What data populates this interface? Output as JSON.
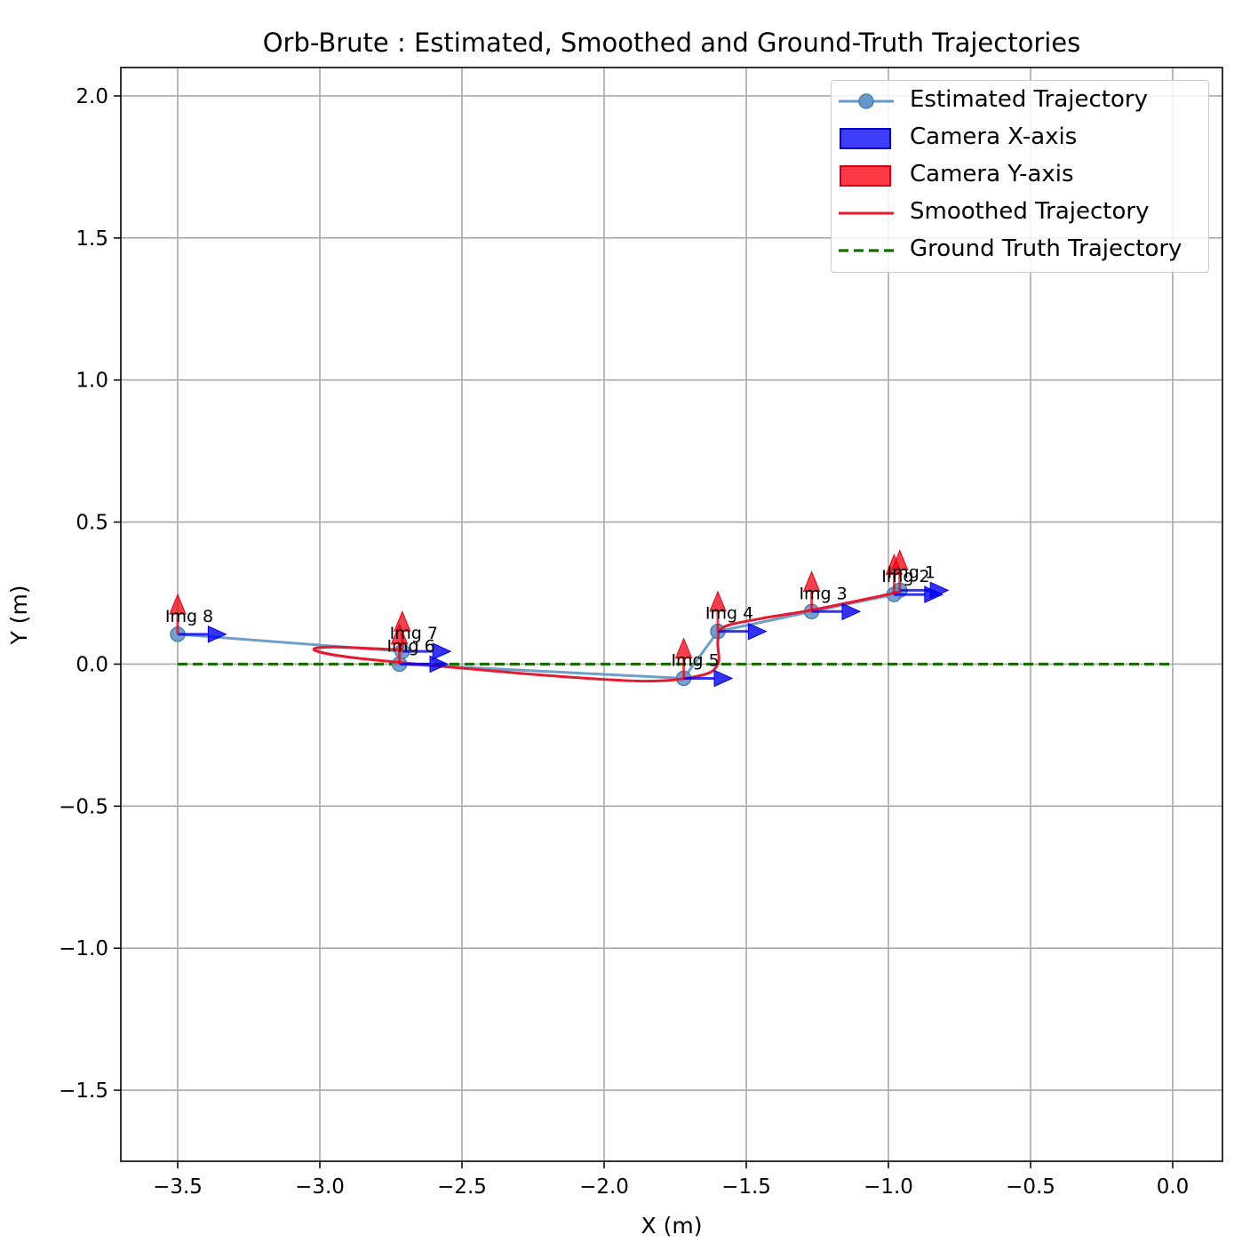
{
  "chart_data": {
    "type": "line",
    "title": "Orb-Brute : Estimated, Smoothed and Ground-Truth Trajectories",
    "xlabel": "X (m)",
    "ylabel": "Y (m)",
    "xlim": [
      -3.7,
      0.175
    ],
    "ylim": [
      -1.75,
      2.1
    ],
    "xticks": [
      -3.5,
      -3.0,
      -2.5,
      -2.0,
      -1.5,
      -1.0,
      -0.5,
      0.0
    ],
    "xtick_labels": [
      "−3.5",
      "−3.0",
      "−2.5",
      "−2.0",
      "−1.5",
      "−1.0",
      "−0.5",
      "0.0"
    ],
    "yticks": [
      2.0,
      1.5,
      1.0,
      0.5,
      0.0,
      -0.5,
      -1.0,
      -1.5
    ],
    "ytick_labels": [
      "2.0",
      "1.5",
      "1.0",
      "0.5",
      "0.0",
      "−0.5",
      "−1.0",
      "−1.5"
    ],
    "grid": true,
    "legend_position": "top-right",
    "series": [
      {
        "name": "Estimated Trajectory",
        "color": "#6699c9",
        "marker": "circle",
        "points": [
          {
            "x": -0.96,
            "y": 0.26
          },
          {
            "x": -0.98,
            "y": 0.245
          },
          {
            "x": -1.27,
            "y": 0.185
          },
          {
            "x": -1.6,
            "y": 0.115
          },
          {
            "x": -1.72,
            "y": -0.05
          },
          {
            "x": -2.72,
            "y": 0.0
          },
          {
            "x": -2.71,
            "y": 0.045
          },
          {
            "x": -3.5,
            "y": 0.105
          }
        ]
      },
      {
        "name": "Smoothed Trajectory",
        "color": "#e8182e",
        "points": [
          {
            "x": -0.96,
            "y": 0.255
          },
          {
            "x": -1.05,
            "y": 0.235
          },
          {
            "x": -1.27,
            "y": 0.19
          },
          {
            "x": -1.45,
            "y": 0.16
          },
          {
            "x": -1.58,
            "y": 0.13
          },
          {
            "x": -1.6,
            "y": 0.08
          },
          {
            "x": -1.6,
            "y": 0.0
          },
          {
            "x": -1.66,
            "y": -0.04
          },
          {
            "x": -1.85,
            "y": -0.06
          },
          {
            "x": -2.2,
            "y": -0.04
          },
          {
            "x": -2.6,
            "y": -0.005
          },
          {
            "x": -2.9,
            "y": 0.025
          },
          {
            "x": -3.02,
            "y": 0.05
          },
          {
            "x": -2.95,
            "y": 0.06
          },
          {
            "x": -2.71,
            "y": 0.05
          }
        ]
      },
      {
        "name": "Ground Truth Trajectory",
        "color": "#1a6b00",
        "style": "dashed",
        "points": [
          {
            "x": -3.5,
            "y": 0.0
          },
          {
            "x": 0.0,
            "y": 0.0
          }
        ]
      }
    ],
    "camera_axes": {
      "x_axis_name": "Camera X-axis",
      "x_axis_color": "#0000ee",
      "y_axis_name": "Camera Y-axis",
      "y_axis_color": "#ee0011",
      "poses": [
        {
          "label": "Img 1",
          "x": -0.96,
          "y": 0.26,
          "x_axis_dx": 0.17,
          "y_axis_dy": 0.14
        },
        {
          "label": "Img 2",
          "x": -0.98,
          "y": 0.245,
          "x_axis_dx": 0.17,
          "y_axis_dy": 0.14
        },
        {
          "label": "Img 3",
          "x": -1.27,
          "y": 0.185,
          "x_axis_dx": 0.17,
          "y_axis_dy": 0.14
        },
        {
          "label": "Img 4",
          "x": -1.6,
          "y": 0.115,
          "x_axis_dx": 0.17,
          "y_axis_dy": 0.14
        },
        {
          "label": "Img 5",
          "x": -1.72,
          "y": -0.05,
          "x_axis_dx": 0.17,
          "y_axis_dy": 0.14
        },
        {
          "label": "Img 6",
          "x": -2.72,
          "y": 0.0,
          "x_axis_dx": 0.17,
          "y_axis_dy": 0.14
        },
        {
          "label": "Img 7",
          "x": -2.71,
          "y": 0.045,
          "x_axis_dx": 0.17,
          "y_axis_dy": 0.14
        },
        {
          "label": "Img 8",
          "x": -3.5,
          "y": 0.105,
          "x_axis_dx": 0.17,
          "y_axis_dy": 0.14
        }
      ]
    }
  },
  "legend": {
    "items": [
      {
        "label": "Estimated Trajectory"
      },
      {
        "label": "Camera X-axis"
      },
      {
        "label": "Camera Y-axis"
      },
      {
        "label": "Smoothed Trajectory"
      },
      {
        "label": "Ground Truth Trajectory"
      }
    ]
  }
}
